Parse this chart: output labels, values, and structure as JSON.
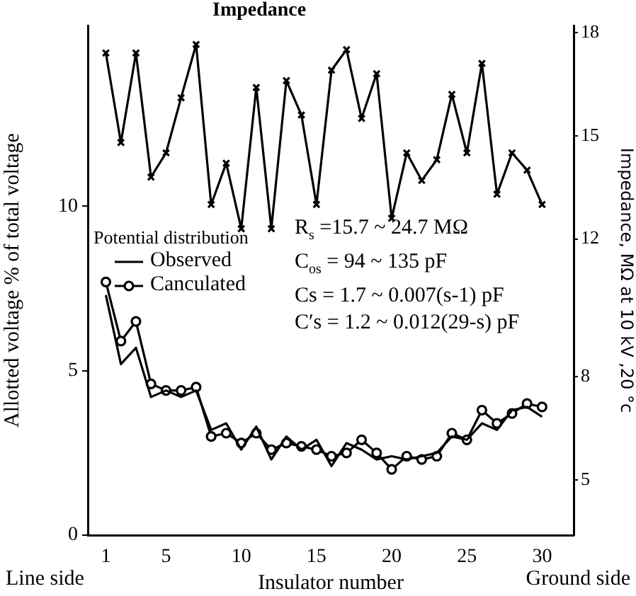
{
  "chart_data": {
    "type": "line",
    "xlabel": "Insulator number",
    "ylabel": "Allotted voltage % of total voltage",
    "y2label": "Impedance, MΩ at 10 kV ,20 °c",
    "legend_title": "Potential distribution",
    "x": [
      1,
      2,
      3,
      4,
      5,
      6,
      7,
      8,
      9,
      10,
      11,
      12,
      13,
      14,
      15,
      16,
      17,
      18,
      19,
      20,
      21,
      22,
      23,
      24,
      25,
      26,
      27,
      28,
      29,
      30
    ],
    "series": [
      {
        "name": "Observed",
        "color": "#000000",
        "marker": "none",
        "values": [
          7.3,
          5.2,
          5.7,
          4.2,
          4.4,
          4.2,
          4.4,
          3.2,
          3.4,
          2.6,
          3.3,
          2.3,
          3.0,
          2.6,
          2.9,
          2.1,
          2.8,
          2.6,
          2.3,
          2.4,
          2.3,
          2.4,
          2.5,
          3.0,
          2.9,
          3.4,
          3.2,
          3.8,
          3.9,
          3.6
        ]
      },
      {
        "name": "Canculated",
        "color": "#000000",
        "marker": "circle",
        "values": [
          7.7,
          5.9,
          6.5,
          4.6,
          4.4,
          4.4,
          4.5,
          3.0,
          3.1,
          2.8,
          3.1,
          2.6,
          2.8,
          2.7,
          2.6,
          2.4,
          2.5,
          2.9,
          2.5,
          2.0,
          2.4,
          2.3,
          2.4,
          3.1,
          2.9,
          3.8,
          3.4,
          3.7,
          4.0,
          3.9
        ]
      },
      {
        "name": "Impedance",
        "color": "#000000",
        "marker": "cross",
        "axis": "y2",
        "values": [
          17.4,
          14.8,
          17.4,
          13.8,
          14.5,
          16.1,
          17.65,
          13.0,
          14.2,
          12.3,
          16.4,
          12.3,
          16.6,
          15.6,
          13.0,
          16.9,
          17.5,
          15.5,
          16.8,
          12.6,
          14.5,
          13.7,
          14.3,
          16.2,
          14.5,
          17.1,
          13.3,
          14.5,
          14.0,
          13.0
        ]
      }
    ],
    "xlim": [
      -0.2,
      32.1
    ],
    "xticks": [
      1,
      5,
      10,
      15,
      20,
      25,
      30
    ],
    "ylim": [
      0,
      15.5
    ],
    "yticks": [
      0,
      5,
      10
    ],
    "y2lim": [
      3.4,
      18.2
    ],
    "y2ticks": [
      5,
      8,
      12,
      15,
      18
    ],
    "legend": "left",
    "grid": false,
    "annotations": [
      "R$_{s}$ =15.7 ~ 24.7 MΩ",
      "C$_{os}$ = 94 ~ 135 pF",
      "Cs = 1.7 ~ 0.007(s-1) pF",
      "C′s = 1.2 ~ 0.012(29-s) pF",
      "Line side",
      "Ground side"
    ]
  }
}
